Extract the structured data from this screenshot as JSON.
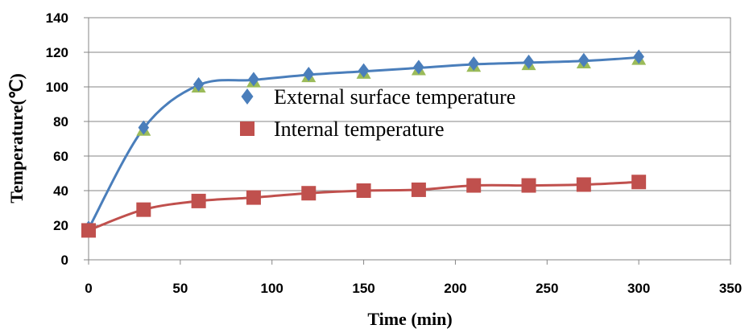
{
  "chart_data": {
    "type": "line",
    "xlabel": "Time (min)",
    "ylabel": "Temperature(℃)",
    "xlim": [
      0,
      350
    ],
    "ylim": [
      0,
      140
    ],
    "x_ticks": [
      "0",
      "50",
      "100",
      "150",
      "200",
      "250",
      "300",
      "350"
    ],
    "y_ticks": [
      "0",
      "20",
      "40",
      "60",
      "80",
      "100",
      "120",
      "140"
    ],
    "grid": "horizontal",
    "legend_position": "center",
    "x": [
      0,
      30,
      60,
      90,
      120,
      150,
      180,
      210,
      240,
      270,
      300
    ],
    "series": [
      {
        "name": "External surface temperature",
        "values": [
          18,
          76,
          101,
          104,
          107,
          109,
          111,
          113,
          114,
          115,
          117
        ],
        "color": "#4a7ebb",
        "marker": "diamond"
      },
      {
        "name": "Internal temperature",
        "values": [
          17,
          29,
          34,
          36,
          38.5,
          40,
          40.5,
          43,
          43,
          43.5,
          45
        ],
        "color": "#c0504d",
        "marker": "square"
      }
    ],
    "extra_markers": {
      "color": "#9bbb59",
      "marker": "triangle",
      "values": [
        18,
        76,
        101,
        104,
        107,
        109,
        111,
        113,
        114,
        115,
        117
      ]
    }
  }
}
